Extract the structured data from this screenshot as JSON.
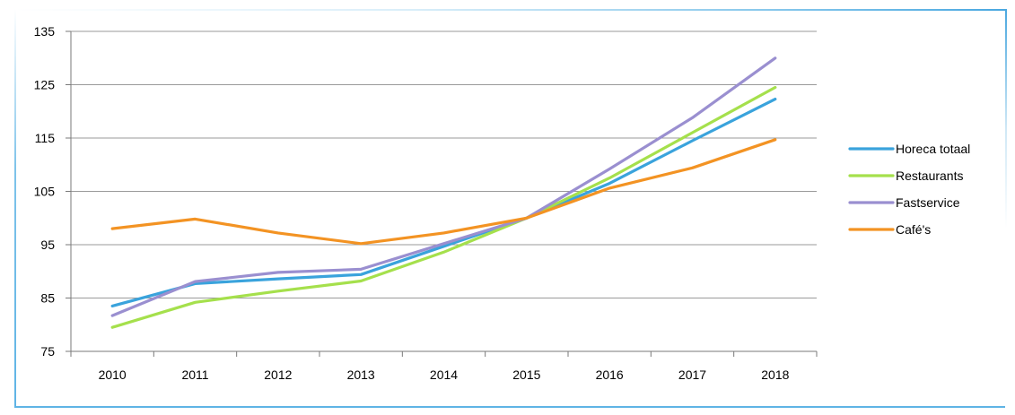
{
  "chart_data": {
    "type": "line",
    "title": "",
    "xlabel": "",
    "ylabel": "",
    "categories": [
      "2010",
      "2011",
      "2012",
      "2013",
      "2014",
      "2015",
      "2016",
      "2017",
      "2018"
    ],
    "y_ticks": [
      "75",
      "85",
      "95",
      "105",
      "115",
      "125",
      "135"
    ],
    "ylim": [
      75,
      135
    ],
    "grid": "horizontal",
    "legend_position": "right",
    "series": [
      {
        "name": "Horeca totaal",
        "color": "#3aa3dc",
        "values": [
          83.5,
          87.7,
          88.6,
          89.4,
          94.7,
          100,
          106.5,
          114.5,
          122.3
        ]
      },
      {
        "name": "Restaurants",
        "color": "#a5e04c",
        "values": [
          79.5,
          84.2,
          86.3,
          88.2,
          93.6,
          100,
          107.5,
          116.0,
          124.5
        ]
      },
      {
        "name": "Fastservice",
        "color": "#9a8fd0",
        "values": [
          81.7,
          88.1,
          89.8,
          90.4,
          95.2,
          100,
          109.2,
          118.8,
          130.0
        ]
      },
      {
        "name": "Café's",
        "color": "#f39323",
        "values": [
          98.0,
          99.8,
          97.2,
          95.2,
          97.2,
          100,
          105.6,
          109.4,
          114.7
        ]
      }
    ]
  }
}
